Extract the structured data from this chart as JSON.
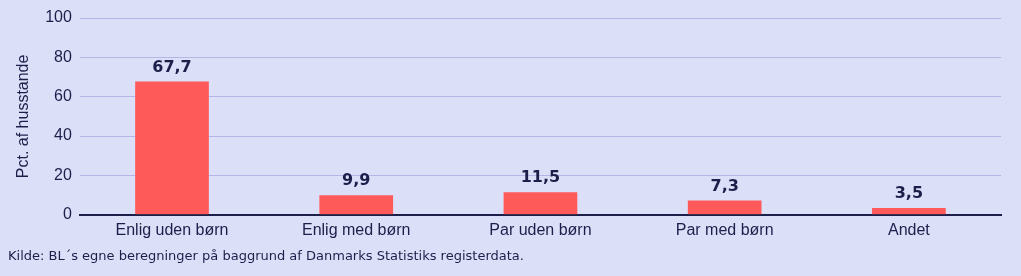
{
  "chart_data": {
    "type": "bar",
    "ylabel": "Pct. af husstande",
    "categories": [
      "Enlig uden børn",
      "Enlig med børn",
      "Par uden børn",
      "Par med børn",
      "Andet"
    ],
    "values": [
      67.7,
      9.9,
      11.5,
      7.3,
      3.5
    ],
    "color": "#ff5a5a",
    "value_labels": [
      "67,7",
      "9,9",
      "11,5",
      "7,3",
      "3,5"
    ],
    "ylim": [
      0,
      100
    ],
    "yticks": [
      0,
      20,
      40,
      60,
      80,
      100
    ],
    "grid": "y",
    "legend": false,
    "annotations": [
      "Kilde: BL´s egne beregninger på baggrund af Danmarks Statistiks registerdata."
    ]
  }
}
